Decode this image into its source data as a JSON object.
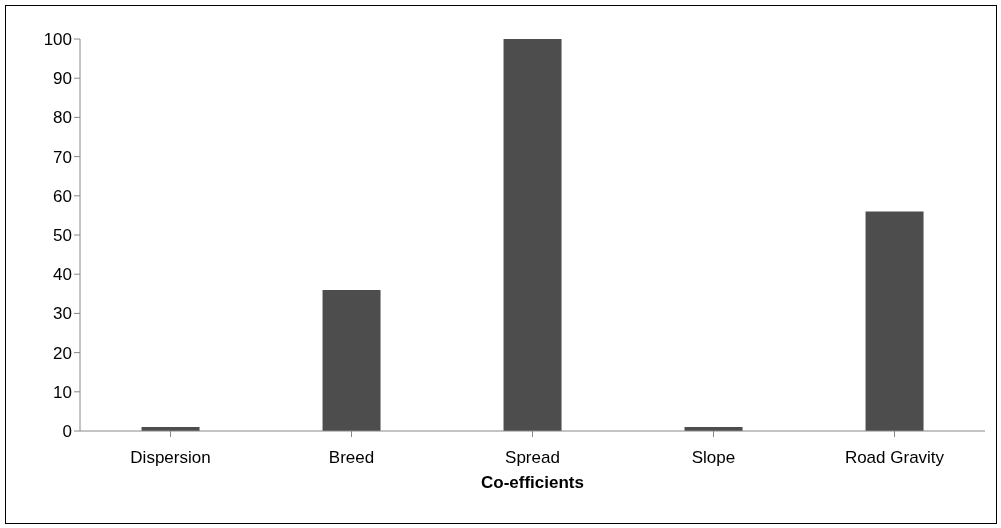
{
  "chart_data": {
    "type": "bar",
    "xlabel": "Co-efficients",
    "categories": [
      "Dispersion",
      "Breed",
      "Spread",
      "Slope",
      "Road Gravity"
    ],
    "values": [
      1,
      36,
      100,
      1,
      56
    ],
    "color": "#4d4d4d",
    "ylim": [
      0,
      100
    ],
    "yticks": [
      0,
      10,
      20,
      30,
      40,
      50,
      60,
      70,
      80,
      90,
      100
    ],
    "grid": false,
    "legend": false
  }
}
